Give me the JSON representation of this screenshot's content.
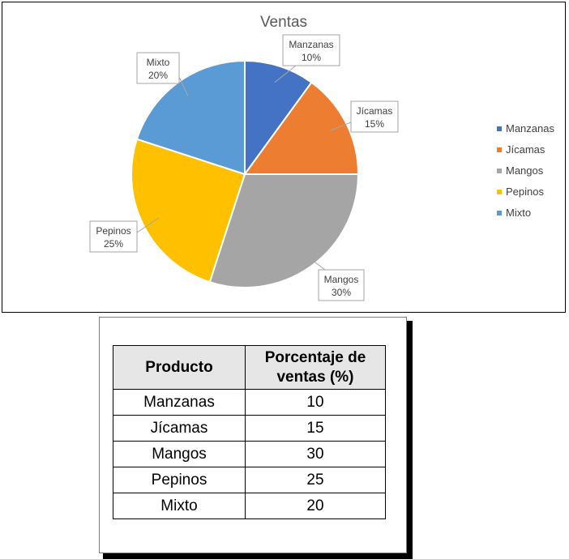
{
  "chart_data": {
    "type": "pie",
    "title": "Ventas",
    "categories": [
      "Manzanas",
      "Jícamas",
      "Mangos",
      "Pepinos",
      "Mixto"
    ],
    "values": [
      10,
      15,
      30,
      25,
      20
    ],
    "data_labels": [
      {
        "category": "Manzanas",
        "percent": "10%"
      },
      {
        "category": "Jícamas",
        "percent": "15%"
      },
      {
        "category": "Mangos",
        "percent": "30%"
      },
      {
        "category": "Pepinos",
        "percent": "25%"
      },
      {
        "category": "Mixto",
        "percent": "20%"
      }
    ],
    "colors": [
      "#4472c4",
      "#ed7d31",
      "#a5a5a5",
      "#ffc000",
      "#5b9bd5"
    ],
    "legend": "right"
  },
  "table": {
    "headers": [
      "Producto",
      "Porcentaje de",
      "ventas (%)"
    ],
    "rows": [
      [
        "Manzanas",
        "10"
      ],
      [
        "Jícamas",
        "15"
      ],
      [
        "Mangos",
        "30"
      ],
      [
        "Pepinos",
        "25"
      ],
      [
        "Mixto",
        "20"
      ]
    ]
  }
}
